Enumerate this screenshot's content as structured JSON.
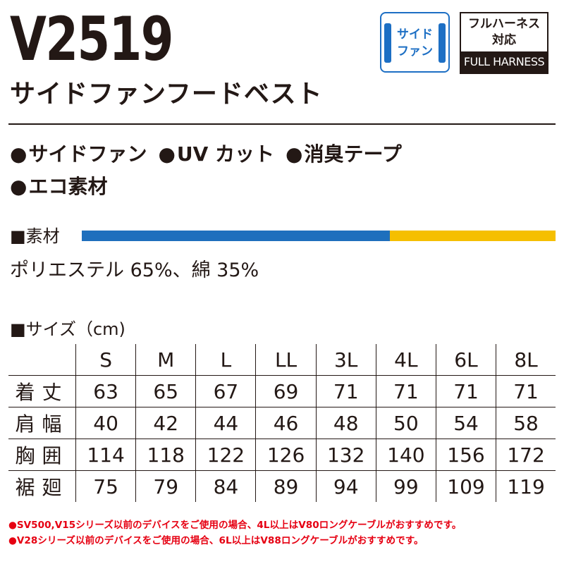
{
  "product": {
    "model": "V2519",
    "name": "サイドファンフードベスト"
  },
  "badges": {
    "side_fan": [
      "サイド",
      "ファン"
    ],
    "harness_line1": "フルハーネス",
    "harness_line2": "対応",
    "harness_en": "FULL HARNESS"
  },
  "features": {
    "row1": [
      "サイドファン",
      "UV カット",
      "消臭テープ"
    ],
    "row2": [
      "エコ素材"
    ]
  },
  "material": {
    "label": "■素材",
    "text": "ポリエステル 65%、綿 35%",
    "polyester_share": 0.65,
    "colors": {
      "polyester": "#1e6fbd",
      "cotton": "#f5bf00"
    }
  },
  "size_table": {
    "label": "■サイズ（cm)",
    "sizes": [
      "S",
      "M",
      "L",
      "LL",
      "3L",
      "4L",
      "6L",
      "8L"
    ],
    "rows": [
      {
        "name": "着丈",
        "values": [
          "63",
          "65",
          "67",
          "69",
          "71",
          "71",
          "71",
          "71"
        ]
      },
      {
        "name": "肩幅",
        "values": [
          "40",
          "42",
          "44",
          "46",
          "48",
          "50",
          "54",
          "58"
        ]
      },
      {
        "name": "胸囲",
        "values": [
          "114",
          "118",
          "122",
          "126",
          "132",
          "140",
          "156",
          "172"
        ]
      },
      {
        "name": "裾廻",
        "values": [
          "75",
          "79",
          "84",
          "89",
          "94",
          "99",
          "109",
          "119"
        ]
      }
    ]
  },
  "notes": [
    "●SV500,V15シリーズ以前のデバイスをご使用の場合、4L以上はV80ロングケーブルがおすすめです。",
    "●V28シリーズ以前のデバイスをご使用の場合、6L以上はV88ロングケーブルがおすすめです。"
  ]
}
